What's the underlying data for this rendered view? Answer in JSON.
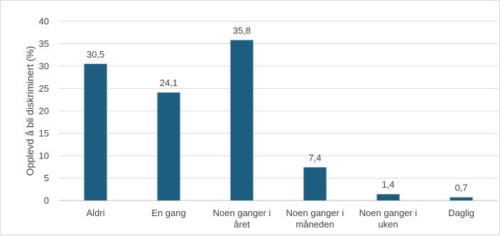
{
  "chart_data": {
    "type": "bar",
    "title": "",
    "xlabel": "",
    "ylabel": "Opplevd å bli diskriminert (%)",
    "ylim": [
      0,
      40
    ],
    "yticks": [
      0,
      5,
      10,
      15,
      20,
      25,
      30,
      35,
      40
    ],
    "grid": true,
    "legend": "none",
    "bar_color": "#1b5e80",
    "categories": [
      [
        "Aldri"
      ],
      [
        "En gang"
      ],
      [
        "Noen ganger i",
        "året"
      ],
      [
        "Noen ganger i",
        "måneden"
      ],
      [
        "Noen ganger i",
        "uken"
      ],
      [
        "Daglig"
      ]
    ],
    "values": [
      30.5,
      24.1,
      35.8,
      7.4,
      1.4,
      0.7
    ],
    "data_labels": [
      "30,5",
      "24,1",
      "35,8",
      "7,4",
      "1,4",
      "0,7"
    ]
  }
}
